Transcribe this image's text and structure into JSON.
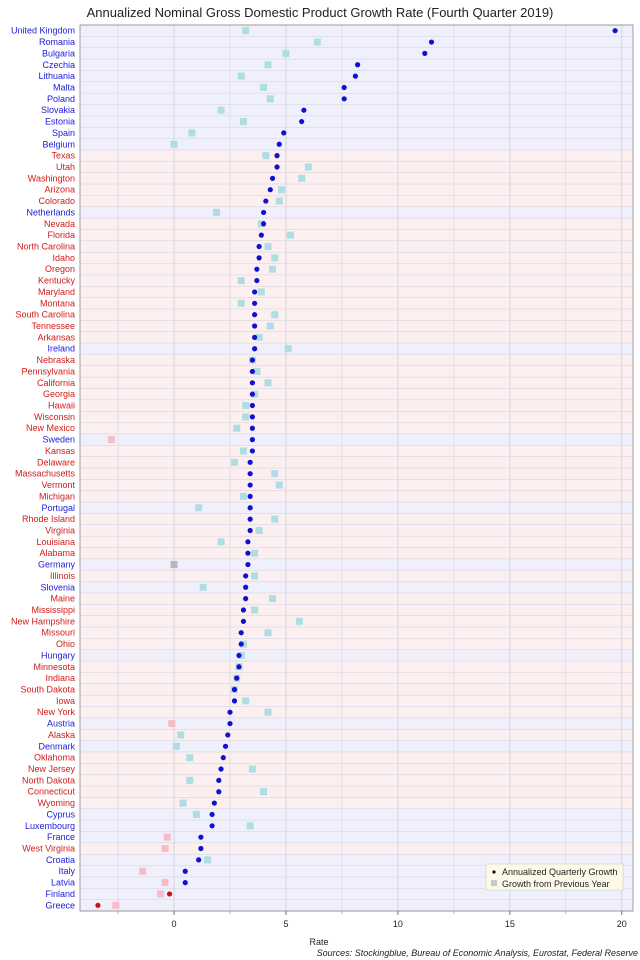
{
  "chart_data": {
    "type": "scatter",
    "title": "Annualized Nominal Gross Domestic Product Growth Rate (Fourth Quarter 2019)",
    "xlabel": "Rate",
    "source": "Sources: Stockingblue, Bureau of Economic Analysis, Eurostat, Federal Reserve",
    "xlim": [
      -4.2,
      20.5
    ],
    "xticks": [
      0,
      5,
      10,
      15,
      20
    ],
    "grid": true,
    "legend_position": "bottom-right",
    "legend": [
      "Annualized Quarterly Growth",
      "Growth from Previous Year"
    ],
    "colors": {
      "eu_label": "#1a1adb",
      "us_label": "#d41a1a",
      "eu_band": "#f0f0fc",
      "us_band": "#fcefef",
      "point_positive": "#1010d0",
      "point_negative": "#d01010",
      "square_positive": "#aedde3",
      "square_negative": "#f7bcc8",
      "square_zero": "#b8b8b8",
      "grid": "#cfcfe0",
      "legend_bg": "#fdfbe8"
    },
    "rows": [
      {
        "name": "United Kingdom",
        "group": "EU",
        "quarterly": 19.7,
        "yoy": 3.2
      },
      {
        "name": "Romania",
        "group": "EU",
        "quarterly": 11.5,
        "yoy": 6.4
      },
      {
        "name": "Bulgaria",
        "group": "EU",
        "quarterly": 11.2,
        "yoy": 5.0
      },
      {
        "name": "Czechia",
        "group": "EU",
        "quarterly": 8.2,
        "yoy": 4.2
      },
      {
        "name": "Lithuania",
        "group": "EU",
        "quarterly": 8.1,
        "yoy": 3.0
      },
      {
        "name": "Malta",
        "group": "EU",
        "quarterly": 7.6,
        "yoy": 4.0
      },
      {
        "name": "Poland",
        "group": "EU",
        "quarterly": 7.6,
        "yoy": 4.3
      },
      {
        "name": "Slovakia",
        "group": "EU",
        "quarterly": 5.8,
        "yoy": 2.1
      },
      {
        "name": "Estonia",
        "group": "EU",
        "quarterly": 5.7,
        "yoy": 3.1
      },
      {
        "name": "Spain",
        "group": "EU",
        "quarterly": 4.9,
        "yoy": 0.8
      },
      {
        "name": "Belgium",
        "group": "EU",
        "quarterly": 4.7,
        "yoy": 0.0
      },
      {
        "name": "Texas",
        "group": "US",
        "quarterly": 4.6,
        "yoy": 4.1
      },
      {
        "name": "Utah",
        "group": "US",
        "quarterly": 4.6,
        "yoy": 6.0
      },
      {
        "name": "Washington",
        "group": "US",
        "quarterly": 4.4,
        "yoy": 5.7
      },
      {
        "name": "Arizona",
        "group": "US",
        "quarterly": 4.3,
        "yoy": 4.8
      },
      {
        "name": "Colorado",
        "group": "US",
        "quarterly": 4.1,
        "yoy": 4.7
      },
      {
        "name": "Netherlands",
        "group": "EU",
        "quarterly": 4.0,
        "yoy": 1.9
      },
      {
        "name": "Nevada",
        "group": "US",
        "quarterly": 4.0,
        "yoy": 3.9
      },
      {
        "name": "Florida",
        "group": "US",
        "quarterly": 3.9,
        "yoy": 5.2
      },
      {
        "name": "North Carolina",
        "group": "US",
        "quarterly": 3.8,
        "yoy": 4.2
      },
      {
        "name": "Idaho",
        "group": "US",
        "quarterly": 3.8,
        "yoy": 4.5
      },
      {
        "name": "Oregon",
        "group": "US",
        "quarterly": 3.7,
        "yoy": 4.4
      },
      {
        "name": "Kentucky",
        "group": "US",
        "quarterly": 3.7,
        "yoy": 3.0
      },
      {
        "name": "Maryland",
        "group": "US",
        "quarterly": 3.6,
        "yoy": 3.9
      },
      {
        "name": "Montana",
        "group": "US",
        "quarterly": 3.6,
        "yoy": 3.0
      },
      {
        "name": "South Carolina",
        "group": "US",
        "quarterly": 3.6,
        "yoy": 4.5
      },
      {
        "name": "Tennessee",
        "group": "US",
        "quarterly": 3.6,
        "yoy": 4.3
      },
      {
        "name": "Arkansas",
        "group": "US",
        "quarterly": 3.6,
        "yoy": 3.8
      },
      {
        "name": "Ireland",
        "group": "EU",
        "quarterly": 3.6,
        "yoy": 5.1
      },
      {
        "name": "Nebraska",
        "group": "US",
        "quarterly": 3.5,
        "yoy": 3.5
      },
      {
        "name": "Pennsylvania",
        "group": "US",
        "quarterly": 3.5,
        "yoy": 3.7
      },
      {
        "name": "California",
        "group": "US",
        "quarterly": 3.5,
        "yoy": 4.2
      },
      {
        "name": "Georgia",
        "group": "US",
        "quarterly": 3.5,
        "yoy": 3.6
      },
      {
        "name": "Hawaii",
        "group": "US",
        "quarterly": 3.5,
        "yoy": 3.2
      },
      {
        "name": "Wisconsin",
        "group": "US",
        "quarterly": 3.5,
        "yoy": 3.2
      },
      {
        "name": "New Mexico",
        "group": "US",
        "quarterly": 3.5,
        "yoy": 2.8
      },
      {
        "name": "Sweden",
        "group": "EU",
        "quarterly": 3.5,
        "yoy": -2.8
      },
      {
        "name": "Kansas",
        "group": "US",
        "quarterly": 3.5,
        "yoy": 3.1
      },
      {
        "name": "Delaware",
        "group": "US",
        "quarterly": 3.4,
        "yoy": 2.7
      },
      {
        "name": "Massachusetts",
        "group": "US",
        "quarterly": 3.4,
        "yoy": 4.5
      },
      {
        "name": "Vermont",
        "group": "US",
        "quarterly": 3.4,
        "yoy": 4.7
      },
      {
        "name": "Michigan",
        "group": "US",
        "quarterly": 3.4,
        "yoy": 3.1
      },
      {
        "name": "Portugal",
        "group": "EU",
        "quarterly": 3.4,
        "yoy": 1.1
      },
      {
        "name": "Rhode Island",
        "group": "US",
        "quarterly": 3.4,
        "yoy": 4.5
      },
      {
        "name": "Virginia",
        "group": "US",
        "quarterly": 3.4,
        "yoy": 3.8
      },
      {
        "name": "Louisiana",
        "group": "US",
        "quarterly": 3.3,
        "yoy": 2.1
      },
      {
        "name": "Alabama",
        "group": "US",
        "quarterly": 3.3,
        "yoy": 3.6
      },
      {
        "name": "Germany",
        "group": "EU",
        "quarterly": 3.3,
        "yoy": 0.0
      },
      {
        "name": "Illinois",
        "group": "US",
        "quarterly": 3.2,
        "yoy": 3.6
      },
      {
        "name": "Slovenia",
        "group": "EU",
        "quarterly": 3.2,
        "yoy": 1.3
      },
      {
        "name": "Maine",
        "group": "US",
        "quarterly": 3.2,
        "yoy": 4.4
      },
      {
        "name": "Mississippi",
        "group": "US",
        "quarterly": 3.1,
        "yoy": 3.6
      },
      {
        "name": "New Hampshire",
        "group": "US",
        "quarterly": 3.1,
        "yoy": 5.6
      },
      {
        "name": "Missouri",
        "group": "US",
        "quarterly": 3.0,
        "yoy": 4.2
      },
      {
        "name": "Ohio",
        "group": "US",
        "quarterly": 3.0,
        "yoy": 3.1
      },
      {
        "name": "Hungary",
        "group": "EU",
        "quarterly": 2.9,
        "yoy": 3.0
      },
      {
        "name": "Minnesota",
        "group": "US",
        "quarterly": 2.9,
        "yoy": 2.9
      },
      {
        "name": "Indiana",
        "group": "US",
        "quarterly": 2.8,
        "yoy": 2.8
      },
      {
        "name": "South Dakota",
        "group": "US",
        "quarterly": 2.7,
        "yoy": 2.7
      },
      {
        "name": "Iowa",
        "group": "US",
        "quarterly": 2.7,
        "yoy": 3.2
      },
      {
        "name": "New York",
        "group": "US",
        "quarterly": 2.5,
        "yoy": 4.2
      },
      {
        "name": "Austria",
        "group": "EU",
        "quarterly": 2.5,
        "yoy": -0.1
      },
      {
        "name": "Alaska",
        "group": "US",
        "quarterly": 2.4,
        "yoy": 0.3
      },
      {
        "name": "Denmark",
        "group": "EU",
        "quarterly": 2.3,
        "yoy": 0.1
      },
      {
        "name": "Oklahoma",
        "group": "US",
        "quarterly": 2.2,
        "yoy": 0.7
      },
      {
        "name": "New Jersey",
        "group": "US",
        "quarterly": 2.1,
        "yoy": 3.5
      },
      {
        "name": "North Dakota",
        "group": "US",
        "quarterly": 2.0,
        "yoy": 0.7
      },
      {
        "name": "Connecticut",
        "group": "US",
        "quarterly": 2.0,
        "yoy": 4.0
      },
      {
        "name": "Wyoming",
        "group": "US",
        "quarterly": 1.8,
        "yoy": 0.4
      },
      {
        "name": "Cyprus",
        "group": "EU",
        "quarterly": 1.7,
        "yoy": 1.0
      },
      {
        "name": "Luxembourg",
        "group": "EU",
        "quarterly": 1.7,
        "yoy": 3.4
      },
      {
        "name": "France",
        "group": "EU",
        "quarterly": 1.2,
        "yoy": -0.3
      },
      {
        "name": "West Virginia",
        "group": "US",
        "quarterly": 1.2,
        "yoy": -0.4
      },
      {
        "name": "Croatia",
        "group": "EU",
        "quarterly": 1.1,
        "yoy": 1.5
      },
      {
        "name": "Italy",
        "group": "EU",
        "quarterly": 0.5,
        "yoy": -1.4
      },
      {
        "name": "Latvia",
        "group": "EU",
        "quarterly": 0.5,
        "yoy": -0.4
      },
      {
        "name": "Finland",
        "group": "EU",
        "quarterly": -0.2,
        "yoy": -0.6
      },
      {
        "name": "Greece",
        "group": "EU",
        "quarterly": -3.4,
        "yoy": -2.6
      }
    ]
  }
}
